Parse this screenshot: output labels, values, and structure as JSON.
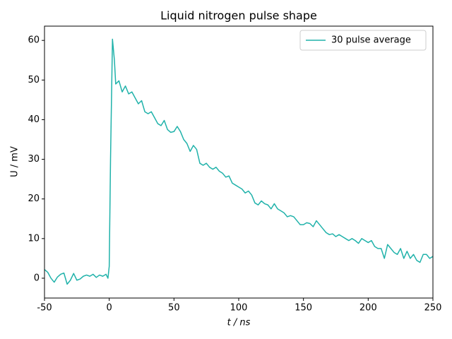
{
  "chart_data": {
    "type": "line",
    "title": "Liquid nitrogen pulse shape",
    "xlabel": "t / ns",
    "ylabel": "U / mV",
    "xlim": [
      -50,
      250
    ],
    "ylim": [
      -5,
      63.6
    ],
    "xticks": [
      -50,
      0,
      50,
      100,
      150,
      200,
      250
    ],
    "yticks": [
      0,
      10,
      20,
      30,
      40,
      50,
      60
    ],
    "legend": "upper right",
    "x": [
      -50,
      -47.5,
      -45,
      -42.5,
      -40,
      -37.5,
      -35,
      -32.5,
      -30,
      -27.5,
      -25,
      -22.5,
      -20,
      -17.5,
      -15,
      -12.5,
      -10,
      -7.5,
      -5,
      -2.5,
      -1,
      0,
      1,
      2.5,
      4,
      5,
      7.5,
      10,
      12.5,
      15,
      17.5,
      20,
      22.5,
      25,
      27.5,
      30,
      32.5,
      35,
      37.5,
      40,
      42.5,
      45,
      47.5,
      50,
      52.5,
      55,
      57.5,
      60,
      62.5,
      65,
      67.5,
      70,
      72.5,
      75,
      77.5,
      80,
      82.5,
      85,
      87.5,
      90,
      92.5,
      95,
      97.5,
      100,
      102.5,
      105,
      107.5,
      110,
      112.5,
      115,
      117.5,
      120,
      122.5,
      125,
      127.5,
      130,
      132.5,
      135,
      137.5,
      140,
      142.5,
      145,
      147.5,
      150,
      152.5,
      155,
      157.5,
      160,
      162.5,
      165,
      167.5,
      170,
      172.5,
      175,
      177.5,
      180,
      182.5,
      185,
      187.5,
      190,
      192.5,
      195,
      197.5,
      200,
      202.5,
      205,
      207.5,
      210,
      212.5,
      215,
      217.5,
      220,
      222.5,
      225,
      227.5,
      230,
      232.5,
      235,
      237.5,
      240,
      242.5,
      245,
      247.5,
      250
    ],
    "series": [
      {
        "name": "30 pulse average",
        "color": "#20b2aa",
        "values": [
          2.2,
          1.5,
          0.0,
          -1.0,
          0.3,
          1.0,
          1.3,
          -1.5,
          -0.5,
          1.2,
          -0.5,
          -0.2,
          0.5,
          0.8,
          0.5,
          1.0,
          0.2,
          0.8,
          0.5,
          1.0,
          0.0,
          3,
          30,
          60.3,
          55,
          49,
          49.8,
          47,
          48.5,
          46.5,
          47,
          45.5,
          44,
          44.8,
          42,
          41.5,
          42,
          40.5,
          39,
          38.5,
          39.8,
          37.5,
          36.8,
          37,
          38.3,
          37,
          35,
          34,
          32,
          33.5,
          32.5,
          29,
          28.5,
          29,
          28,
          27.5,
          28,
          27,
          26.5,
          25.5,
          25.8,
          24,
          23.5,
          23,
          22.5,
          21.5,
          22,
          21,
          19,
          18.5,
          19.5,
          18.8,
          18.5,
          17.5,
          18.8,
          17.5,
          17,
          16.5,
          15.5,
          15.8,
          15.5,
          14.5,
          13.5,
          13.5,
          14,
          13.8,
          13,
          14.5,
          13.5,
          12.5,
          11.5,
          11,
          11.2,
          10.5,
          11,
          10.5,
          10,
          9.5,
          10,
          9.5,
          8.8,
          10,
          9.5,
          9,
          9.5,
          8,
          7.5,
          7.5,
          5,
          8.5,
          7.5,
          6.5,
          6,
          7.5,
          5,
          6.8,
          5,
          6,
          4.5,
          4,
          6,
          6,
          5,
          5.5
        ]
      }
    ]
  }
}
